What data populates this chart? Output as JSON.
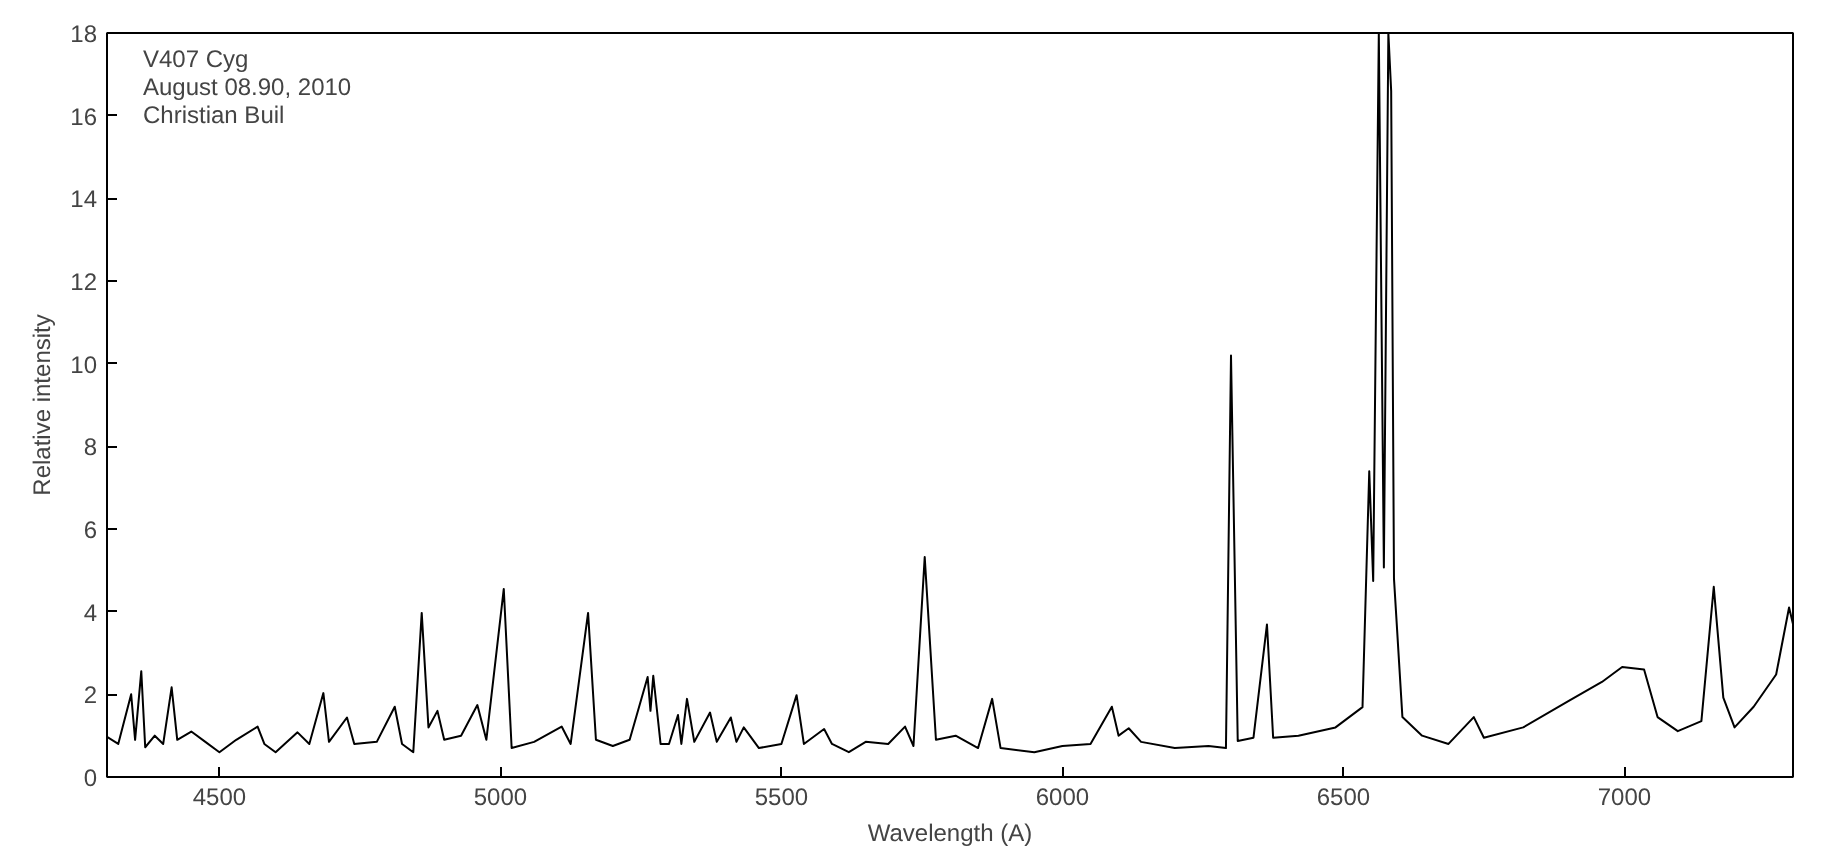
{
  "chart_data": {
    "type": "line",
    "xlabel": "Wavelength (A)",
    "ylabel": "Relative intensity",
    "annotations": [
      "V407 Cyg",
      "August 08.90, 2010",
      "Christian Buil"
    ],
    "xlim": [
      4300,
      7300
    ],
    "xticks": [
      4500,
      5000,
      5500,
      6000,
      6500,
      7000
    ],
    "ylim": [
      0,
      18
    ],
    "yticks": [
      0,
      2,
      4,
      6,
      8,
      10,
      12,
      14,
      16,
      18
    ],
    "grid": false,
    "series": [
      {
        "color": "#000000",
        "x": [
          4300,
          4320,
          4343,
          4350,
          4361,
          4368,
          4385,
          4400,
          4415,
          4425,
          4450,
          4475,
          4500,
          4530,
          4568,
          4580,
          4600,
          4639,
          4660,
          4685,
          4695,
          4727,
          4740,
          4780,
          4812,
          4825,
          4845,
          4860,
          4872,
          4888,
          4900,
          4930,
          4959,
          4975,
          5006,
          5020,
          5060,
          5109,
          5125,
          5156,
          5170,
          5200,
          5230,
          5262,
          5267,
          5272,
          5285,
          5300,
          5316,
          5322,
          5332,
          5345,
          5373,
          5385,
          5410,
          5420,
          5433,
          5460,
          5500,
          5527,
          5540,
          5576,
          5590,
          5620,
          5650,
          5690,
          5720,
          5735,
          5755,
          5775,
          5810,
          5850,
          5875,
          5890,
          5950,
          6000,
          6050,
          6088,
          6100,
          6118,
          6140,
          6200,
          6260,
          6291,
          6300,
          6312,
          6340,
          6364,
          6375,
          6420,
          6486,
          6534,
          6546,
          6553,
          6563,
          6572,
          6580,
          6585,
          6590,
          6605,
          6640,
          6687,
          6732,
          6750,
          6820,
          6901,
          6960,
          6996,
          7035,
          7059,
          7095,
          7137,
          7159,
          7176,
          7196,
          7230,
          7270,
          7293,
          7300
        ],
        "values": [
          0.97,
          0.8,
          2.0,
          0.9,
          2.56,
          0.72,
          1.0,
          0.8,
          2.17,
          0.9,
          1.1,
          0.85,
          0.6,
          0.9,
          1.22,
          0.8,
          0.6,
          1.08,
          0.8,
          2.03,
          0.85,
          1.44,
          0.8,
          0.85,
          1.7,
          0.8,
          0.6,
          3.97,
          1.2,
          1.6,
          0.9,
          1.0,
          1.74,
          0.9,
          4.55,
          0.7,
          0.85,
          1.22,
          0.8,
          3.97,
          0.9,
          0.75,
          0.9,
          2.42,
          1.6,
          2.45,
          0.8,
          0.8,
          1.5,
          0.8,
          1.89,
          0.85,
          1.56,
          0.85,
          1.44,
          0.85,
          1.2,
          0.7,
          0.8,
          1.98,
          0.8,
          1.16,
          0.8,
          0.6,
          0.85,
          0.8,
          1.22,
          0.75,
          5.32,
          0.9,
          1.0,
          0.7,
          1.89,
          0.7,
          0.6,
          0.75,
          0.8,
          1.7,
          1.0,
          1.18,
          0.85,
          0.7,
          0.75,
          0.7,
          10.2,
          0.87,
          0.95,
          3.69,
          0.95,
          1.0,
          1.2,
          1.69,
          7.4,
          4.74,
          18,
          5.07,
          18,
          16.6,
          4.8,
          1.45,
          1.0,
          0.8,
          1.45,
          0.95,
          1.2,
          1.84,
          2.3,
          2.66,
          2.6,
          1.45,
          1.11,
          1.35,
          4.6,
          1.92,
          1.2,
          1.7,
          2.48,
          4.1,
          3.7
        ]
      }
    ]
  }
}
